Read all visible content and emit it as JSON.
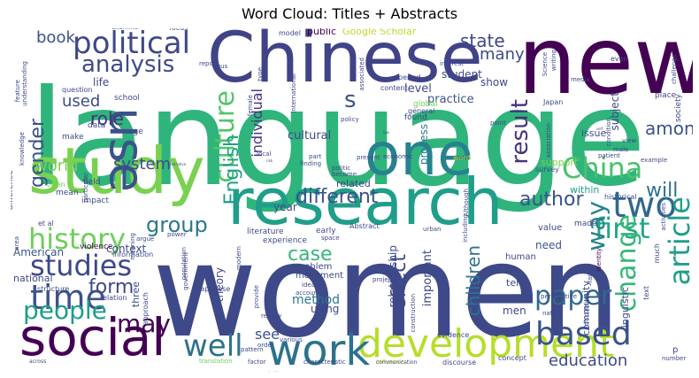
{
  "chart_data": {
    "type": "wordcloud",
    "title": "Word Cloud: Titles + Abstracts",
    "words": [
      {
        "text": "language",
        "weight": 100,
        "color": "#2fb47c"
      },
      {
        "text": "women",
        "weight": 92,
        "color": "#3e4989"
      },
      {
        "text": "new",
        "weight": 62,
        "color": "#440154"
      },
      {
        "text": "Chinese",
        "weight": 52,
        "color": "#404387"
      },
      {
        "text": "study",
        "weight": 52,
        "color": "#7ad151"
      },
      {
        "text": "research",
        "weight": 48,
        "color": "#1f9e89"
      },
      {
        "text": "one",
        "weight": 44,
        "color": "#26828e"
      },
      {
        "text": "social",
        "weight": 42,
        "color": "#440154"
      },
      {
        "text": "development",
        "weight": 36,
        "color": "#b5de2b"
      },
      {
        "text": "work",
        "weight": 34,
        "color": "#2c728e"
      },
      {
        "text": "political",
        "weight": 30,
        "color": "#3e4989"
      },
      {
        "text": "use",
        "weight": 30,
        "color": "#3b528b"
      },
      {
        "text": "two",
        "weight": 28,
        "color": "#31688e"
      },
      {
        "text": "history",
        "weight": 26,
        "color": "#6ece58"
      },
      {
        "text": "time",
        "weight": 28,
        "color": "#3b528b"
      },
      {
        "text": "based",
        "weight": 26,
        "color": "#3b528b"
      },
      {
        "text": "China",
        "weight": 24,
        "color": "#4ac16d"
      },
      {
        "text": "first",
        "weight": 24,
        "color": "#22a884"
      },
      {
        "text": "studies",
        "weight": 24,
        "color": "#3e4989"
      },
      {
        "text": "people",
        "weight": 24,
        "color": "#1f9e89"
      },
      {
        "text": "culture",
        "weight": 22,
        "color": "#52c569"
      },
      {
        "text": "may",
        "weight": 22,
        "color": "#440154"
      },
      {
        "text": "well",
        "weight": 22,
        "color": "#2c728e"
      },
      {
        "text": "paper",
        "weight": 22,
        "color": "#31688e"
      },
      {
        "text": "article",
        "weight": 22,
        "color": "#1f9e89"
      },
      {
        "text": "change",
        "weight": 22,
        "color": "#35b779"
      },
      {
        "text": "analysis",
        "weight": 20,
        "color": "#3e4989"
      },
      {
        "text": "group",
        "weight": 18,
        "color": "#2a788e"
      },
      {
        "text": "way",
        "weight": 18,
        "color": "#26828e"
      },
      {
        "text": "result",
        "weight": 18,
        "color": "#46327e"
      },
      {
        "text": "English",
        "weight": 16,
        "color": "#1f9e89"
      },
      {
        "text": "form",
        "weight": 16,
        "color": "#3e4989"
      },
      {
        "text": "gender",
        "weight": 16,
        "color": "#3b528b"
      },
      {
        "text": "case",
        "weight": 16,
        "color": "#35b779"
      },
      {
        "text": "effect",
        "weight": 16,
        "color": "#3e4989"
      },
      {
        "text": "different",
        "weight": 16,
        "color": "#3b528b"
      },
      {
        "text": "author",
        "weight": 16,
        "color": "#3b528b"
      },
      {
        "text": "education",
        "weight": 14,
        "color": "#3e4989"
      },
      {
        "text": "system",
        "weight": 14,
        "color": "#3e4989"
      },
      {
        "text": "will",
        "weight": 14,
        "color": "#2c728e"
      },
      {
        "text": "among",
        "weight": 14,
        "color": "#3b528b"
      },
      {
        "text": "world",
        "weight": 14,
        "color": "#7ad151"
      },
      {
        "text": "role",
        "weight": 14,
        "color": "#46327e"
      },
      {
        "text": "children",
        "weight": 14,
        "color": "#2c728e"
      },
      {
        "text": "state",
        "weight": 14,
        "color": "#3e4989"
      },
      {
        "text": "book",
        "weight": 12,
        "color": "#3b528b"
      },
      {
        "text": "many",
        "weight": 12,
        "color": "#3e4989"
      },
      {
        "text": "used",
        "weight": 12,
        "color": "#3e4989"
      },
      {
        "text": "individual",
        "weight": 12,
        "color": "#46327e"
      },
      {
        "text": "s",
        "weight": 24,
        "color": "#3b528b"
      },
      {
        "text": "American",
        "weight": 10,
        "color": "#3b528b"
      },
      {
        "text": "method",
        "weight": 10,
        "color": "#2a788e"
      },
      {
        "text": "see",
        "weight": 11,
        "color": "#3b528b"
      },
      {
        "text": "cultural",
        "weight": 10,
        "color": "#3e4989"
      },
      {
        "text": "practice",
        "weight": 10,
        "color": "#3b528b"
      },
      {
        "text": "level",
        "weight": 10,
        "color": "#3e4989"
      },
      {
        "text": "student",
        "weight": 9,
        "color": "#3e4989"
      },
      {
        "text": "show",
        "weight": 9,
        "color": "#3e4989"
      },
      {
        "text": "Google Scholar",
        "weight": 9,
        "color": "#b5de2b"
      },
      {
        "text": "public",
        "weight": 9,
        "color": "#440154"
      },
      {
        "text": "life",
        "weight": 9,
        "color": "#3e4989"
      },
      {
        "text": "context",
        "weight": 9,
        "color": "#3e4989"
      },
      {
        "text": "national",
        "weight": 9,
        "color": "#3e4989"
      },
      {
        "text": "using",
        "weight": 9,
        "color": "#3e4989"
      },
      {
        "text": "need",
        "weight": 9,
        "color": "#3b528b"
      },
      {
        "text": "men",
        "weight": 9,
        "color": "#3e4989"
      },
      {
        "text": "important",
        "weight": 9,
        "color": "#3e4989"
      },
      {
        "text": "relationship",
        "weight": 9,
        "color": "#3e4989"
      },
      {
        "text": "theory",
        "weight": 8,
        "color": "#3e4989"
      },
      {
        "text": "three",
        "weight": 8,
        "color": "#3e4989"
      },
      {
        "text": "process",
        "weight": 8,
        "color": "#2a788e"
      },
      {
        "text": "year",
        "weight": 8,
        "color": "#3e4989"
      },
      {
        "text": "related",
        "weight": 8,
        "color": "#3e4989"
      },
      {
        "text": "issue",
        "weight": 8,
        "color": "#3e4989"
      },
      {
        "text": "subject",
        "weight": 8,
        "color": "#3e4989"
      },
      {
        "text": "support",
        "weight": 7,
        "color": "#7ad151"
      },
      {
        "text": "within",
        "weight": 7,
        "color": "#1f9e89"
      },
      {
        "text": "linguistic",
        "weight": 7,
        "color": "#3e4989"
      },
      {
        "text": "community",
        "weight": 7,
        "color": "#3e4989"
      },
      {
        "text": "term",
        "weight": 7,
        "color": "#3e4989"
      },
      {
        "text": "human",
        "weight": 7,
        "color": "#3e4989"
      },
      {
        "text": "problem",
        "weight": 7,
        "color": "#3e4989"
      },
      {
        "text": "movement",
        "weight": 7,
        "color": "#3e4989"
      },
      {
        "text": "experience",
        "weight": 7,
        "color": "#3e4989"
      },
      {
        "text": "literature",
        "weight": 7,
        "color": "#3e4989"
      },
      {
        "text": "early",
        "weight": 7,
        "color": "#3e4989"
      },
      {
        "text": "value",
        "weight": 7,
        "color": "#3e4989"
      },
      {
        "text": "made",
        "weight": 7,
        "color": "#3e4989"
      },
      {
        "text": "Abstract",
        "weight": 6,
        "color": "#3e4989"
      },
      {
        "text": "school",
        "weight": 6,
        "color": "#3e4989"
      },
      {
        "text": "global",
        "weight": 6,
        "color": "#6ece58"
      },
      {
        "text": "found",
        "weight": 6,
        "color": "#3e4989"
      },
      {
        "text": "general",
        "weight": 6,
        "color": "#3e4989"
      },
      {
        "text": "period",
        "weight": 6,
        "color": "#3e4989"
      },
      {
        "text": "content",
        "weight": 6,
        "color": "#3e4989"
      },
      {
        "text": "data",
        "weight": 6,
        "color": "#3e4989"
      },
      {
        "text": "make",
        "weight": 6,
        "color": "#3e4989"
      },
      {
        "text": "question",
        "weight": 6,
        "color": "#3e4989"
      },
      {
        "text": "age",
        "weight": 6,
        "color": "#3e4989"
      },
      {
        "text": "difference",
        "weight": 6,
        "color": "#3e4989"
      },
      {
        "text": "field",
        "weight": 6,
        "color": "#3e4989"
      },
      {
        "text": "mean",
        "weight": 6,
        "color": "#3e4989"
      },
      {
        "text": "impact",
        "weight": 6,
        "color": "#3e4989"
      },
      {
        "text": "information",
        "weight": 6,
        "color": "#3e4989"
      },
      {
        "text": "violence",
        "weight": 6,
        "color": "#440154"
      },
      {
        "text": "approach",
        "weight": 6,
        "color": "#3e4989"
      },
      {
        "text": "structure",
        "weight": 6,
        "color": "#3e4989"
      },
      {
        "text": "relation",
        "weight": 6,
        "color": "#3e4989"
      },
      {
        "text": "Japanese",
        "weight": 6,
        "color": "#3e4989"
      },
      {
        "text": "various",
        "weight": 6,
        "color": "#3e4989"
      },
      {
        "text": "order",
        "weight": 6,
        "color": "#3e4989"
      },
      {
        "text": "evidence",
        "weight": 6,
        "color": "#3e4989"
      },
      {
        "text": "concept",
        "weight": 6,
        "color": "#3e4989"
      },
      {
        "text": "discourse",
        "weight": 6,
        "color": "#3e4989"
      },
      {
        "text": "factor",
        "weight": 6,
        "color": "#3e4989"
      },
      {
        "text": "translation",
        "weight": 6,
        "color": "#6ece58"
      },
      {
        "text": "review",
        "weight": 5,
        "color": "#3e4989"
      },
      {
        "text": "idea",
        "weight": 5,
        "color": "#3e4989"
      },
      {
        "text": "account",
        "weight": 5,
        "color": "#3e4989"
      },
      {
        "text": "urban",
        "weight": 5,
        "color": "#3e4989"
      },
      {
        "text": "space",
        "weight": 5,
        "color": "#3e4989"
      },
      {
        "text": "including",
        "weight": 5,
        "color": "#3e4989"
      },
      {
        "text": "construction",
        "weight": 5,
        "color": "#3e4989"
      },
      {
        "text": "discussion",
        "weight": 5,
        "color": "#3e4989"
      },
      {
        "text": "nature",
        "weight": 5,
        "color": "#3e4989"
      },
      {
        "text": "family",
        "weight": 5,
        "color": "#3e4989"
      },
      {
        "text": "perspective",
        "weight": 5,
        "color": "#3e4989"
      },
      {
        "text": "identity",
        "weight": 5,
        "color": "#440154"
      },
      {
        "text": "much",
        "weight": 5,
        "color": "#3e4989"
      },
      {
        "text": "text",
        "weight": 5,
        "color": "#3e4989"
      },
      {
        "text": "number",
        "weight": 5,
        "color": "#3e4989"
      },
      {
        "text": "historical",
        "weight": 5,
        "color": "#3e4989"
      },
      {
        "text": "survey",
        "weight": 5,
        "color": "#3e4989"
      },
      {
        "text": "example",
        "weight": 5,
        "color": "#3e4989"
      },
      {
        "text": "view",
        "weight": 5,
        "color": "#3e4989"
      },
      {
        "text": "male",
        "weight": 5,
        "color": "#3e4989"
      },
      {
        "text": "patient",
        "weight": 5,
        "color": "#3e4989"
      },
      {
        "text": "place",
        "weight": 5,
        "color": "#3e4989"
      },
      {
        "text": "society",
        "weight": 5,
        "color": "#3e4989"
      },
      {
        "text": "activities",
        "weight": 5,
        "color": "#3e4989"
      },
      {
        "text": "economic",
        "weight": 5,
        "color": "#3e4989"
      },
      {
        "text": "present",
        "weight": 5,
        "color": "#3e4989"
      },
      {
        "text": "politic",
        "weight": 5,
        "color": "#3e4989"
      },
      {
        "text": "become",
        "weight": 5,
        "color": "#3e4989"
      },
      {
        "text": "part",
        "weight": 5,
        "color": "#3e4989"
      },
      {
        "text": "finding",
        "weight": 5,
        "color": "#3e4989"
      },
      {
        "text": "local",
        "weight": 5,
        "color": "#3e4989"
      },
      {
        "text": "Although",
        "weight": 5,
        "color": "#3e4989"
      },
      {
        "text": "word",
        "weight": 5,
        "color": "#b5de2b"
      },
      {
        "text": "model",
        "weight": 5,
        "color": "#3e4989"
      },
      {
        "text": "type",
        "weight": 5,
        "color": "#3e4989"
      },
      {
        "text": "thus",
        "weight": 5,
        "color": "#3e4989"
      },
      {
        "text": "report",
        "weight": 5,
        "color": "#3e4989"
      },
      {
        "text": "focus",
        "weight": 5,
        "color": "#3e4989"
      },
      {
        "text": "examine",
        "weight": 5,
        "color": "#3e4989"
      },
      {
        "text": "feature",
        "weight": 5,
        "color": "#3e4989"
      },
      {
        "text": "understanding",
        "weight": 5,
        "color": "#3e4989"
      },
      {
        "text": "knowledge",
        "weight": 5,
        "color": "#3e4989"
      },
      {
        "text": "Japan",
        "weight": 5,
        "color": "#3e4989"
      },
      {
        "text": "media",
        "weight": 5,
        "color": "#3e4989"
      },
      {
        "text": "even",
        "weight": 5,
        "color": "#3e4989"
      },
      {
        "text": "interest",
        "weight": 5,
        "color": "#3e4989"
      },
      {
        "text": "condition",
        "weight": 5,
        "color": "#3e4989"
      },
      {
        "text": "association",
        "weight": 5,
        "color": "#3e4989"
      },
      {
        "text": "writing",
        "weight": 5,
        "color": "#3e4989"
      },
      {
        "text": "challenge",
        "weight": 5,
        "color": "#3e4989"
      },
      {
        "text": "Science",
        "weight": 5,
        "color": "#3e4989"
      },
      {
        "text": "policy",
        "weight": 5,
        "color": "#3e4989"
      },
      {
        "text": "international",
        "weight": 5,
        "color": "#3e4989"
      },
      {
        "text": "female",
        "weight": 5,
        "color": "#3e4989"
      },
      {
        "text": "associated",
        "weight": 5,
        "color": "#3e4989"
      },
      {
        "text": "point",
        "weight": 5,
        "color": "#3e4989"
      },
      {
        "text": "particular",
        "weight": 5,
        "color": "#3e4989"
      },
      {
        "text": "power",
        "weight": 5,
        "color": "#3e4989"
      },
      {
        "text": "meaning",
        "weight": 5,
        "color": "#3e4989"
      },
      {
        "text": "argue",
        "weight": 5,
        "color": "#3e4989"
      },
      {
        "text": "population",
        "weight": 5,
        "color": "#3e4989"
      },
      {
        "text": "modern",
        "weight": 5,
        "color": "#3e4989"
      },
      {
        "text": "provide",
        "weight": 5,
        "color": "#3e4989"
      },
      {
        "text": "pattern",
        "weight": 5,
        "color": "#3e4989"
      },
      {
        "text": "characteristic",
        "weight": 5,
        "color": "#3e4989"
      },
      {
        "text": "influence",
        "weight": 5,
        "color": "#b5de2b"
      },
      {
        "text": "project",
        "weight": 5,
        "color": "#3e4989"
      },
      {
        "text": "communication",
        "weight": 5,
        "color": "#3e4989"
      },
      {
        "text": "across",
        "weight": 5,
        "color": "#3e4989"
      },
      {
        "text": "area",
        "weight": 5,
        "color": "#3e4989"
      },
      {
        "text": "often",
        "weight": 5,
        "color": "#6ece58"
      },
      {
        "text": "et al",
        "weight": 5,
        "color": "#3e4989"
      },
      {
        "text": "organization",
        "weight": 4,
        "color": "#3e4989"
      },
      {
        "text": "government",
        "weight": 5,
        "color": "#3e4989"
      },
      {
        "text": "narrative",
        "weight": 4,
        "color": "#3e4989"
      },
      {
        "text": "risk",
        "weight": 4,
        "color": "#3e4989"
      },
      {
        "text": "law",
        "weight": 4,
        "color": "#3e4989"
      },
      {
        "text": "self",
        "weight": 4,
        "color": "#3e4989"
      },
      {
        "text": "p",
        "weight": 5,
        "color": "#3e4989"
      }
    ]
  }
}
